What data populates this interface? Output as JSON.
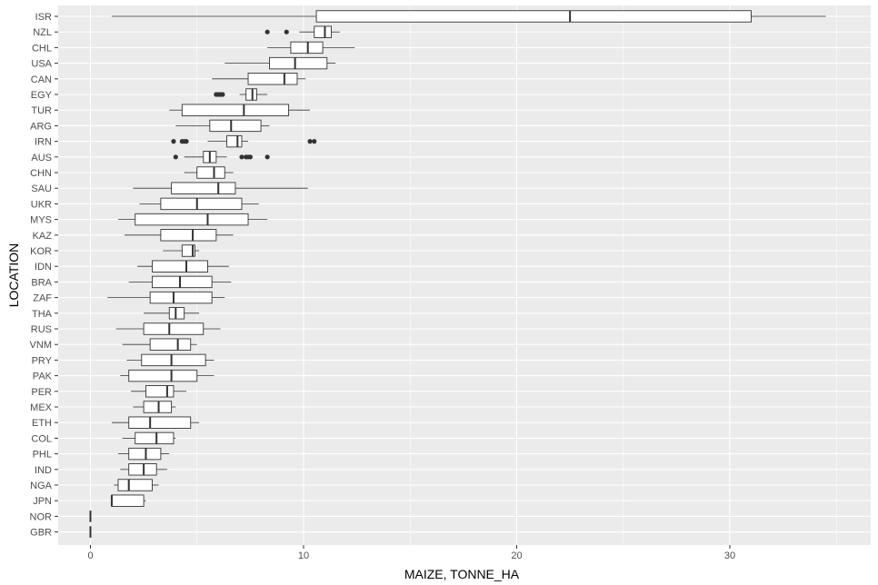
{
  "chart_data": {
    "type": "boxplot",
    "orientation": "horizontal",
    "xlabel": "MAIZE, TONNE_HA",
    "ylabel": "LOCATION",
    "xlim": [
      -1,
      35.5
    ],
    "x_ticks": [
      0,
      10,
      20,
      30
    ],
    "grid": true,
    "legend": "none",
    "colors": {
      "panel": "#ebebeb",
      "grid_major": "#ffffff",
      "box_fill": "#ffffff",
      "box_stroke": "#333333",
      "outlier": "#333333",
      "tick_text": "#4d4d4d"
    },
    "series": [
      {
        "label": "ISR",
        "min": 1.0,
        "q1": 10.6,
        "median": 22.5,
        "q3": 31.0,
        "max": 34.5,
        "outliers": []
      },
      {
        "label": "NZL",
        "min": 9.8,
        "q1": 10.5,
        "median": 11.0,
        "q3": 11.3,
        "max": 11.7,
        "outliers": [
          8.3,
          9.2
        ]
      },
      {
        "label": "CHL",
        "min": 8.3,
        "q1": 9.4,
        "median": 10.2,
        "q3": 10.9,
        "max": 12.4,
        "outliers": []
      },
      {
        "label": "USA",
        "min": 6.3,
        "q1": 8.4,
        "median": 9.6,
        "q3": 11.1,
        "max": 11.5,
        "outliers": []
      },
      {
        "label": "CAN",
        "min": 5.7,
        "q1": 7.4,
        "median": 9.1,
        "q3": 9.7,
        "max": 10.1,
        "outliers": []
      },
      {
        "label": "EGY",
        "min": 7.0,
        "q1": 7.3,
        "median": 7.6,
        "q3": 7.8,
        "max": 8.3,
        "outliers": [
          5.9,
          6.0,
          6.1,
          6.2
        ]
      },
      {
        "label": "TUR",
        "min": 3.7,
        "q1": 4.3,
        "median": 7.2,
        "q3": 9.3,
        "max": 10.3,
        "outliers": []
      },
      {
        "label": "ARG",
        "min": 4.0,
        "q1": 5.6,
        "median": 6.6,
        "q3": 8.0,
        "max": 8.4,
        "outliers": []
      },
      {
        "label": "IRN",
        "min": 5.5,
        "q1": 6.4,
        "median": 6.9,
        "q3": 7.1,
        "max": 7.4,
        "outliers": [
          3.9,
          4.3,
          4.4,
          4.5,
          10.3,
          10.5
        ]
      },
      {
        "label": "AUS",
        "min": 4.4,
        "q1": 5.3,
        "median": 5.6,
        "q3": 5.9,
        "max": 6.4,
        "outliers": [
          4.0,
          7.1,
          7.3,
          7.4,
          7.5,
          8.3
        ]
      },
      {
        "label": "CHN",
        "min": 4.4,
        "q1": 5.0,
        "median": 5.8,
        "q3": 6.3,
        "max": 6.7,
        "outliers": []
      },
      {
        "label": "SAU",
        "min": 2.0,
        "q1": 3.8,
        "median": 6.0,
        "q3": 6.8,
        "max": 10.2,
        "outliers": []
      },
      {
        "label": "UKR",
        "min": 2.3,
        "q1": 3.3,
        "median": 5.0,
        "q3": 7.1,
        "max": 7.9,
        "outliers": []
      },
      {
        "label": "MYS",
        "min": 1.3,
        "q1": 2.1,
        "median": 5.5,
        "q3": 7.4,
        "max": 8.3,
        "outliers": []
      },
      {
        "label": "KAZ",
        "min": 1.6,
        "q1": 3.3,
        "median": 4.8,
        "q3": 5.9,
        "max": 6.7,
        "outliers": []
      },
      {
        "label": "KOR",
        "min": 3.4,
        "q1": 4.3,
        "median": 4.8,
        "q3": 4.9,
        "max": 5.1,
        "outliers": []
      },
      {
        "label": "IDN",
        "min": 2.2,
        "q1": 2.9,
        "median": 4.5,
        "q3": 5.5,
        "max": 6.5,
        "outliers": []
      },
      {
        "label": "BRA",
        "min": 1.8,
        "q1": 2.9,
        "median": 4.2,
        "q3": 5.7,
        "max": 6.6,
        "outliers": []
      },
      {
        "label": "ZAF",
        "min": 0.8,
        "q1": 2.8,
        "median": 3.9,
        "q3": 5.7,
        "max": 6.3,
        "outliers": []
      },
      {
        "label": "THA",
        "min": 2.5,
        "q1": 3.7,
        "median": 4.0,
        "q3": 4.4,
        "max": 5.1,
        "outliers": []
      },
      {
        "label": "RUS",
        "min": 1.2,
        "q1": 2.5,
        "median": 3.7,
        "q3": 5.3,
        "max": 6.1,
        "outliers": []
      },
      {
        "label": "VNM",
        "min": 1.5,
        "q1": 2.8,
        "median": 4.1,
        "q3": 4.7,
        "max": 5.0,
        "outliers": []
      },
      {
        "label": "PRY",
        "min": 1.7,
        "q1": 2.4,
        "median": 3.8,
        "q3": 5.4,
        "max": 5.8,
        "outliers": []
      },
      {
        "label": "PAK",
        "min": 1.4,
        "q1": 1.8,
        "median": 3.8,
        "q3": 5.0,
        "max": 5.8,
        "outliers": []
      },
      {
        "label": "PER",
        "min": 1.9,
        "q1": 2.6,
        "median": 3.6,
        "q3": 3.9,
        "max": 4.5,
        "outliers": []
      },
      {
        "label": "MEX",
        "min": 2.0,
        "q1": 2.5,
        "median": 3.2,
        "q3": 3.8,
        "max": 4.0,
        "outliers": []
      },
      {
        "label": "ETH",
        "min": 1.0,
        "q1": 1.8,
        "median": 2.8,
        "q3": 4.7,
        "max": 5.1,
        "outliers": []
      },
      {
        "label": "COL",
        "min": 1.5,
        "q1": 2.1,
        "median": 3.1,
        "q3": 3.9,
        "max": 4.0,
        "outliers": []
      },
      {
        "label": "PHL",
        "min": 1.3,
        "q1": 1.8,
        "median": 2.6,
        "q3": 3.3,
        "max": 3.7,
        "outliers": []
      },
      {
        "label": "IND",
        "min": 1.4,
        "q1": 1.8,
        "median": 2.5,
        "q3": 3.1,
        "max": 3.6,
        "outliers": []
      },
      {
        "label": "NGA",
        "min": 1.1,
        "q1": 1.3,
        "median": 1.8,
        "q3": 2.9,
        "max": 3.2,
        "outliers": []
      },
      {
        "label": "JPN",
        "min": 1.0,
        "q1": 1.0,
        "median": 1.0,
        "q3": 2.5,
        "max": 2.6,
        "outliers": []
      },
      {
        "label": "NOR",
        "min": 0,
        "q1": 0,
        "median": 0,
        "q3": 0,
        "max": 0,
        "outliers": []
      },
      {
        "label": "GBR",
        "min": 0,
        "q1": 0,
        "median": 0,
        "q3": 0,
        "max": 0,
        "outliers": []
      }
    ]
  }
}
